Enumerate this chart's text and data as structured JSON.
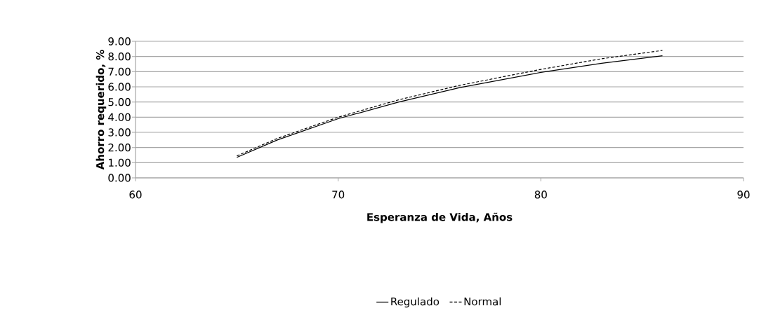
{
  "chart_data": {
    "type": "line",
    "xlabel": "Esperanza de Vida, Años",
    "ylabel": "Ahorro requerido, %",
    "xlim": [
      60,
      90
    ],
    "xticks": [
      60,
      70,
      80,
      90
    ],
    "ylim": [
      0,
      9
    ],
    "yticks": [
      {
        "value": 0,
        "label": "0.00"
      },
      {
        "value": 1,
        "label": "1.00"
      },
      {
        "value": 2,
        "label": "2.00"
      },
      {
        "value": 3,
        "label": "3.00"
      },
      {
        "value": 4,
        "label": "4.00"
      },
      {
        "value": 5,
        "label": "5.00"
      },
      {
        "value": 6,
        "label": "6.00"
      },
      {
        "value": 7,
        "label": "7.00"
      },
      {
        "value": 8,
        "label": "8.00"
      },
      {
        "value": 9,
        "label": "9.00"
      }
    ],
    "x": [
      65,
      67,
      70,
      73,
      76,
      80,
      83,
      86
    ],
    "grid": "y",
    "legend": "bottom",
    "marker": "none",
    "series": [
      {
        "name": "Regulado",
        "color": "#000000",
        "line_style": "solid",
        "values": [
          1.35,
          2.5,
          3.9,
          5.0,
          5.95,
          6.95,
          7.55,
          8.05
        ]
      },
      {
        "name": "Normal",
        "color": "#000000",
        "line_style": "dashed",
        "values": [
          1.45,
          2.6,
          4.0,
          5.15,
          6.1,
          7.15,
          7.85,
          8.4
        ]
      }
    ]
  }
}
